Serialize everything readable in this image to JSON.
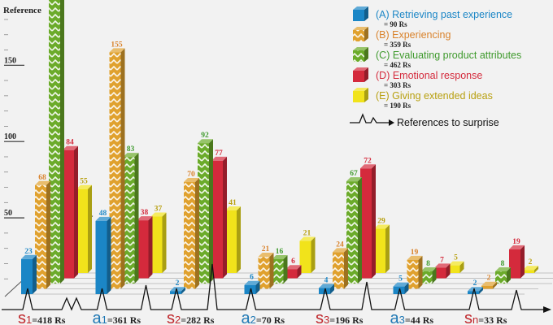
{
  "chart_data": {
    "type": "bar",
    "ylabel": "Reference",
    "yticks": [
      50,
      100,
      150
    ],
    "ylim": [
      0,
      190
    ],
    "categories": [
      {
        "sym": "s",
        "sub": "1",
        "text": "=418 Rs",
        "color": "#c0282d"
      },
      {
        "sym": "a",
        "sub": "1",
        "text": "=361 Rs",
        "color": "#1f78b4"
      },
      {
        "sym": "s",
        "sub": "2",
        "text": "=282 Rs",
        "color": "#c0282d"
      },
      {
        "sym": "a",
        "sub": "2",
        "text": "=70 Rs",
        "color": "#1f78b4"
      },
      {
        "sym": "s",
        "sub": "3",
        "text": "=196 Rs",
        "color": "#c0282d"
      },
      {
        "sym": "a",
        "sub": "3",
        "text": "=44 Rs",
        "color": "#1f78b4"
      },
      {
        "sym": "s",
        "sub": "n",
        "text": "=33 Rs",
        "color": "#c0282d"
      }
    ],
    "series": [
      {
        "name": "(A) Retrieving past experience",
        "total": "= 90 Rs",
        "color": "#1b86c6",
        "label_color": "#1b86c6",
        "hatched": false,
        "values": [
          23,
          48,
          2,
          6,
          4,
          5,
          2
        ]
      },
      {
        "name": "(B) Experiencing",
        "total": "= 359 Rs",
        "color": "#e0a12e",
        "label_color": "#d9822b",
        "hatched": true,
        "values": [
          68,
          155,
          70,
          21,
          24,
          19,
          2
        ]
      },
      {
        "name": "(C) Evaluating product attributes",
        "total": "= 462 Rs",
        "color": "#6bab2a",
        "label_color": "#3f9a2d",
        "hatched": true,
        "values": [
          188,
          83,
          92,
          16,
          67,
          8,
          8
        ]
      },
      {
        "name": "(D) Emotional response",
        "total": "= 303 Rs",
        "color": "#d42a3c",
        "label_color": "#d42a3c",
        "hatched": false,
        "values": [
          84,
          38,
          77,
          6,
          72,
          7,
          19
        ]
      },
      {
        "name": "(E) Giving extended ideas",
        "total": "= 190 Rs",
        "color": "#f1e31b",
        "label_color": "#b8a010",
        "hatched": false,
        "values": [
          55,
          37,
          41,
          21,
          29,
          5,
          2
        ]
      }
    ],
    "surprise_legend": "References to surprise"
  }
}
